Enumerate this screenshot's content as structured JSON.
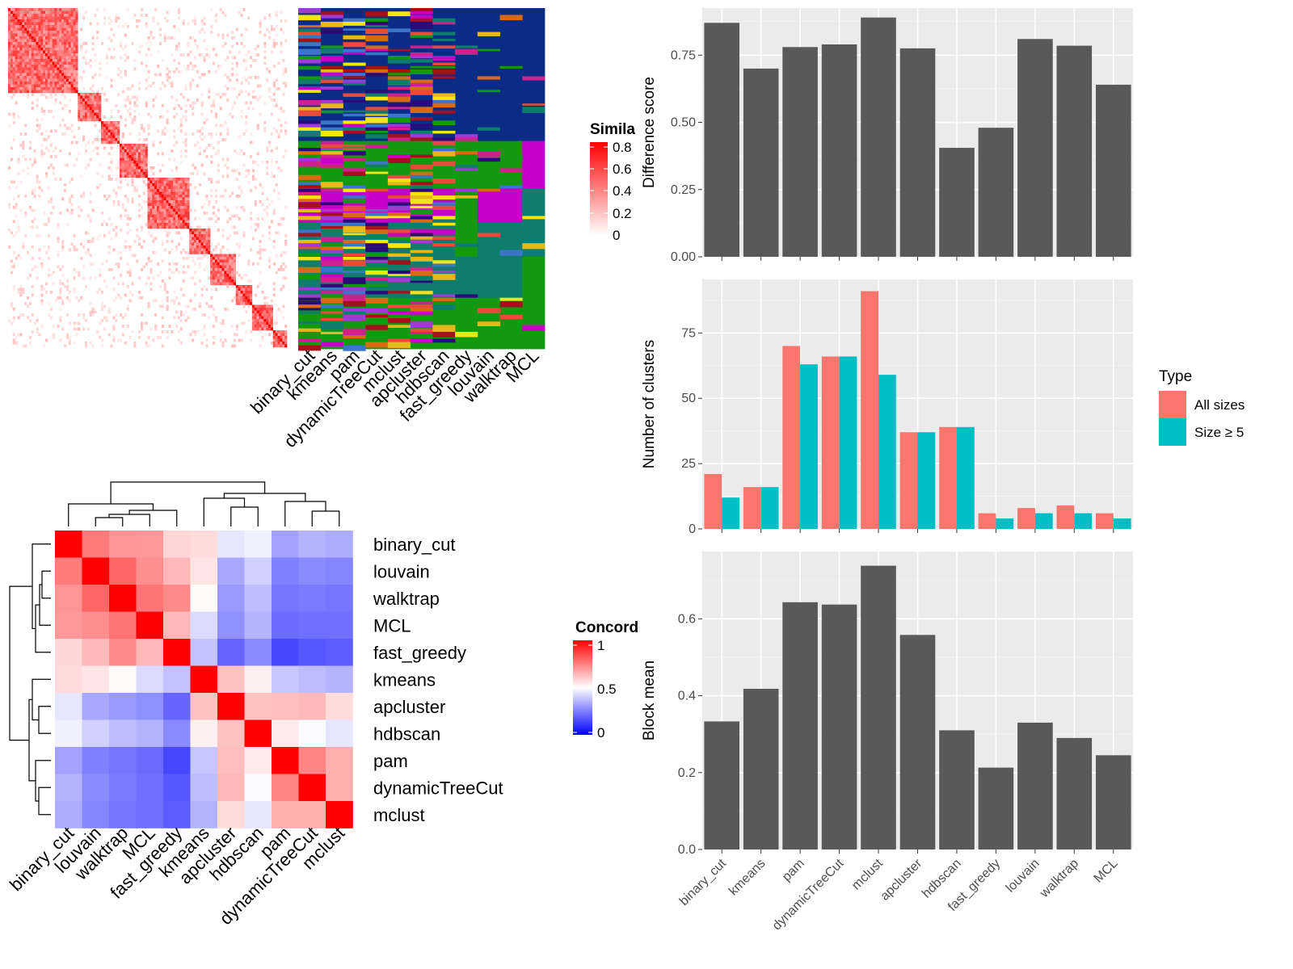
{
  "chart_data": [
    {
      "type": "heatmap",
      "panel": "similarity",
      "legend": {
        "title": "Simila",
        "ticks": [
          "0.8",
          "0.6",
          "0.4",
          "0.2",
          "0"
        ]
      },
      "column_labels": [
        "binary_cut",
        "kmeans",
        "pam",
        "dynamicTreeCut",
        "mclust",
        "apcluster",
        "hdbscan",
        "fast_greedy",
        "louvain",
        "walktrap",
        "MCL"
      ],
      "block_sizes": [
        30,
        10,
        8,
        12,
        18,
        9,
        11,
        7,
        9,
        7,
        14,
        5
      ],
      "colors": {
        "low": "#ffffff",
        "high": "#ff0000",
        "noise": "#fde2dd"
      }
    },
    {
      "type": "heatmap",
      "panel": "cluster-assignment",
      "columns": [
        "binary_cut",
        "kmeans",
        "pam",
        "dynamicTreeCut",
        "mclust",
        "apcluster",
        "hdbscan",
        "fast_greedy",
        "louvain",
        "walktrap",
        "MCL"
      ],
      "bands": [
        {
          "rows": 39,
          "dominant": [
            "#0a2c86",
            "#0a2c86",
            "#0a2c86",
            "#0a2c86",
            "#0a2c86",
            "#0a2c86",
            "#0a2c86",
            "#0a2c86",
            "#0a2c86",
            "#0a2c86",
            "#0a2c86"
          ]
        },
        {
          "rows": 14,
          "dominant": [
            "#13990f",
            "#13990f",
            "#13990f",
            "#13990f",
            "#13990f",
            "#13990f",
            "#13990f",
            "#13990f",
            "#13990f",
            "#13990f",
            "#c700c8"
          ]
        },
        {
          "rows": 10,
          "dominant": [
            "#c700c8",
            "#c700c8",
            "#c700c8",
            "#c700c8",
            "#c700c8",
            "#c700c8",
            "#c700c8",
            "#13990f",
            "#c700c8",
            "#c700c8",
            "#0e7d6c"
          ]
        },
        {
          "rows": 10,
          "dominant": [
            "#0e7d6c",
            "#0e7d6c",
            "#0e7d6c",
            "#0e7d6c",
            "#0e7d6c",
            "#0e7d6c",
            "#0e7d6c",
            "#13990f",
            "#0e7d6c",
            "#0e7d6c",
            "#0e7d6c"
          ]
        },
        {
          "rows": 12,
          "dominant": [
            "#0e7d6c",
            "#0e7d6c",
            "#0e7d6c",
            "#0e7d6c",
            "#0e7d6c",
            "#0e7d6c",
            "#0e7d6c",
            "#0e7d6c",
            "#0e7d6c",
            "#0e7d6c",
            "#13990f"
          ]
        },
        {
          "rows": 15,
          "dominant": [
            "#13990f",
            "#13990f",
            "#13990f",
            "#13990f",
            "#13990f",
            "#13990f",
            "#13990f",
            "#13990f",
            "#13990f",
            "#13990f",
            "#13990f"
          ]
        }
      ],
      "palette": [
        "#c700c8",
        "#e8b81a",
        "#e84a3c",
        "#13990f",
        "#0e7d6c",
        "#2b0a7a",
        "#d01f8e",
        "#d86b12",
        "#3b74c9",
        "#a4101b",
        "#9d3bd7",
        "#f2e511"
      ]
    },
    {
      "type": "heatmap",
      "panel": "concordance",
      "legend": {
        "title": "Concord",
        "ticks": [
          "1",
          "0.5",
          "0"
        ]
      },
      "labels": [
        "binary_cut",
        "louvain",
        "walktrap",
        "MCL",
        "fast_greedy",
        "kmeans",
        "apcluster",
        "hdbscan",
        "pam",
        "dynamicTreeCut",
        "mclust"
      ],
      "matrix": [
        [
          1.0,
          0.76,
          0.71,
          0.7,
          0.58,
          0.57,
          0.45,
          0.47,
          0.32,
          0.35,
          0.34
        ],
        [
          0.76,
          1.0,
          0.8,
          0.72,
          0.64,
          0.55,
          0.33,
          0.41,
          0.25,
          0.27,
          0.26
        ],
        [
          0.71,
          0.8,
          1.0,
          0.77,
          0.73,
          0.51,
          0.3,
          0.37,
          0.23,
          0.24,
          0.23
        ],
        [
          0.7,
          0.72,
          0.77,
          1.0,
          0.64,
          0.43,
          0.28,
          0.35,
          0.21,
          0.22,
          0.22
        ],
        [
          0.58,
          0.64,
          0.73,
          0.64,
          1.0,
          0.38,
          0.2,
          0.27,
          0.14,
          0.17,
          0.18
        ],
        [
          0.57,
          0.55,
          0.51,
          0.43,
          0.38,
          1.0,
          0.62,
          0.53,
          0.39,
          0.37,
          0.35
        ],
        [
          0.45,
          0.33,
          0.3,
          0.28,
          0.2,
          0.62,
          1.0,
          0.62,
          0.63,
          0.64,
          0.57
        ],
        [
          0.47,
          0.41,
          0.37,
          0.35,
          0.27,
          0.53,
          0.62,
          1.0,
          0.54,
          0.49,
          0.45
        ],
        [
          0.32,
          0.25,
          0.23,
          0.21,
          0.14,
          0.39,
          0.63,
          0.54,
          1.0,
          0.74,
          0.66
        ],
        [
          0.35,
          0.27,
          0.24,
          0.22,
          0.17,
          0.37,
          0.64,
          0.49,
          0.74,
          1.0,
          0.66
        ],
        [
          0.34,
          0.26,
          0.23,
          0.22,
          0.18,
          0.35,
          0.57,
          0.45,
          0.66,
          0.66,
          1.0
        ]
      ],
      "colors": {
        "low": "#0000ff",
        "mid": "#ffffff",
        "high": "#ff0000"
      }
    },
    {
      "type": "bar",
      "panel": "difference-score",
      "categories": [
        "binary_cut",
        "kmeans",
        "pam",
        "dynamicTreeCut",
        "mclust",
        "apcluster",
        "hdbscan",
        "fast_greedy",
        "louvain",
        "walktrap",
        "MCL"
      ],
      "values": [
        0.87,
        0.7,
        0.78,
        0.79,
        0.89,
        0.775,
        0.405,
        0.48,
        0.81,
        0.785,
        0.64
      ],
      "ylabel": "Difference score",
      "ylim": [
        0,
        0.925
      ],
      "yticks": [
        0,
        0.25,
        0.5,
        0.75
      ],
      "ytick_labels": [
        "0.00",
        "0.25",
        "0.50",
        "0.75"
      ],
      "show_xticklabels": false,
      "grid": true
    },
    {
      "type": "bar",
      "panel": "number-of-clusters",
      "categories": [
        "binary_cut",
        "kmeans",
        "pam",
        "dynamicTreeCut",
        "mclust",
        "apcluster",
        "hdbscan",
        "fast_greedy",
        "louvain",
        "walktrap",
        "MCL"
      ],
      "series": [
        {
          "name": "All sizes",
          "values": [
            21,
            16,
            70,
            66,
            91,
            37,
            39,
            6,
            8,
            9,
            6
          ],
          "color": "#f8766d"
        },
        {
          "name": "Size ≥ 5",
          "values": [
            12,
            16,
            63,
            66,
            59,
            37,
            39,
            4,
            6,
            6,
            4
          ],
          "color": "#00bfc4"
        }
      ],
      "ylabel": "Number of clusters",
      "ylim": [
        0,
        95.5
      ],
      "yticks": [
        0,
        25,
        50,
        75
      ],
      "ytick_labels": [
        "0",
        "25",
        "50",
        "75"
      ],
      "legend": {
        "title": "Type",
        "position": "right"
      },
      "show_xticklabels": false,
      "grid": true
    },
    {
      "type": "bar",
      "panel": "block-mean",
      "categories": [
        "binary_cut",
        "kmeans",
        "pam",
        "dynamicTreeCut",
        "mclust",
        "apcluster",
        "hdbscan",
        "fast_greedy",
        "louvain",
        "walktrap",
        "MCL"
      ],
      "values": [
        0.333,
        0.418,
        0.643,
        0.637,
        0.738,
        0.558,
        0.31,
        0.213,
        0.33,
        0.29,
        0.245
      ],
      "ylabel": "Block mean",
      "ylim": [
        0,
        0.775
      ],
      "yticks": [
        0,
        0.2,
        0.4,
        0.6
      ],
      "ytick_labels": [
        "0.0",
        "0.2",
        "0.4",
        "0.6"
      ],
      "show_xticklabels": true,
      "grid": true
    }
  ]
}
